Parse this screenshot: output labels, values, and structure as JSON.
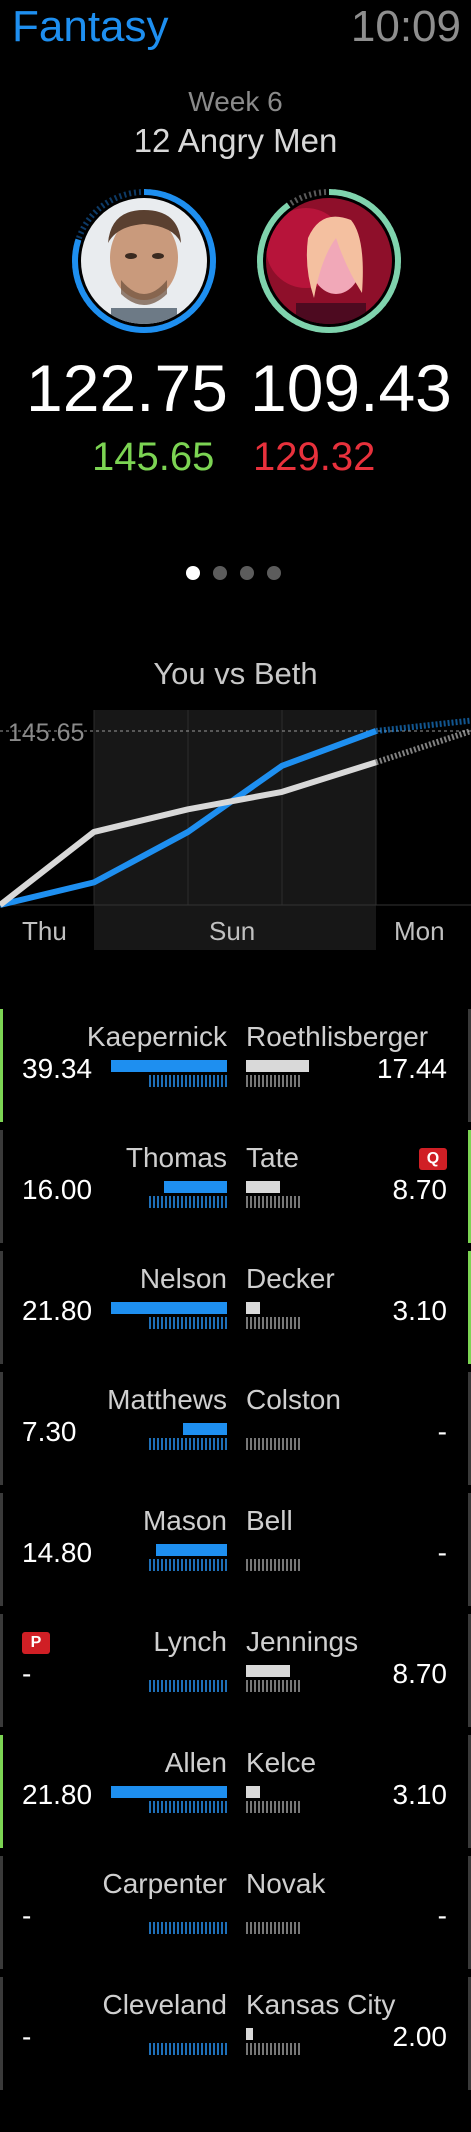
{
  "header": {
    "app_title": "Fantasy",
    "time": "10:09"
  },
  "matchup": {
    "week": "Week 6",
    "league": "12 Angry Men",
    "left": {
      "score": "122.75",
      "projected": "145.65",
      "ring_progress": 0.8
    },
    "right": {
      "score": "109.43",
      "projected": "129.32",
      "ring_progress": 0.9
    },
    "page_count": 4,
    "active_page": 0
  },
  "chart_data": {
    "type": "line",
    "title": "You vs Beth",
    "x_labels": [
      "Thu",
      "Sun",
      "Mon"
    ],
    "reference_label": "145.65",
    "series": [
      {
        "color": "#1e8ff0",
        "points": [
          0,
          13,
          42,
          80,
          100,
          106
        ]
      },
      {
        "color": "#d8d8d8",
        "points": [
          0,
          42,
          55,
          65,
          82,
          100
        ]
      }
    ]
  },
  "roster": [
    {
      "left_name": "Kaepernick",
      "left_pts": "39.34",
      "left_fill": 0.95,
      "right_name": "Roethlisberger",
      "right_pts": "17.44",
      "right_fill": 0.92,
      "left_edge": "win",
      "right_edge": "neutral",
      "tag": "",
      "tag_side": ""
    },
    {
      "left_name": "Thomas",
      "left_pts": "16.00",
      "left_fill": 0.52,
      "right_name": "Tate",
      "right_pts": "8.70",
      "right_fill": 0.5,
      "left_edge": "neutral",
      "right_edge": "win",
      "tag": "Q",
      "tag_side": "right"
    },
    {
      "left_name": "Nelson",
      "left_pts": "21.80",
      "left_fill": 0.95,
      "right_name": "Decker",
      "right_pts": "3.10",
      "right_fill": 0.2,
      "left_edge": "neutral",
      "right_edge": "win",
      "tag": "",
      "tag_side": ""
    },
    {
      "left_name": "Matthews",
      "left_pts": "7.30",
      "left_fill": 0.36,
      "right_name": "Colston",
      "right_pts": "-",
      "right_fill": 0,
      "left_edge": "neutral",
      "right_edge": "neutral",
      "tag": "",
      "tag_side": ""
    },
    {
      "left_name": "Mason",
      "left_pts": "14.80",
      "left_fill": 0.58,
      "right_name": "Bell",
      "right_pts": "-",
      "right_fill": 0,
      "left_edge": "neutral",
      "right_edge": "neutral",
      "tag": "",
      "tag_side": ""
    },
    {
      "left_name": "Lynch",
      "left_pts": "-",
      "left_fill": 0,
      "right_name": "Jennings",
      "right_pts": "8.70",
      "right_fill": 0.65,
      "left_edge": "neutral",
      "right_edge": "neutral",
      "tag": "P",
      "tag_side": "left"
    },
    {
      "left_name": "Allen",
      "left_pts": "21.80",
      "left_fill": 0.95,
      "right_name": "Kelce",
      "right_pts": "3.10",
      "right_fill": 0.2,
      "left_edge": "win",
      "right_edge": "neutral",
      "tag": "",
      "tag_side": ""
    },
    {
      "left_name": "Carpenter",
      "left_pts": "-",
      "left_fill": 0,
      "right_name": "Novak",
      "right_pts": "-",
      "right_fill": 0,
      "left_edge": "neutral",
      "right_edge": "neutral",
      "tag": "",
      "tag_side": ""
    },
    {
      "left_name": "Cleveland",
      "left_pts": "-",
      "left_fill": 0,
      "right_name": "Kansas City",
      "right_pts": "2.00",
      "right_fill": 0.1,
      "left_edge": "neutral",
      "right_edge": "neutral",
      "tag": "",
      "tag_side": ""
    }
  ]
}
